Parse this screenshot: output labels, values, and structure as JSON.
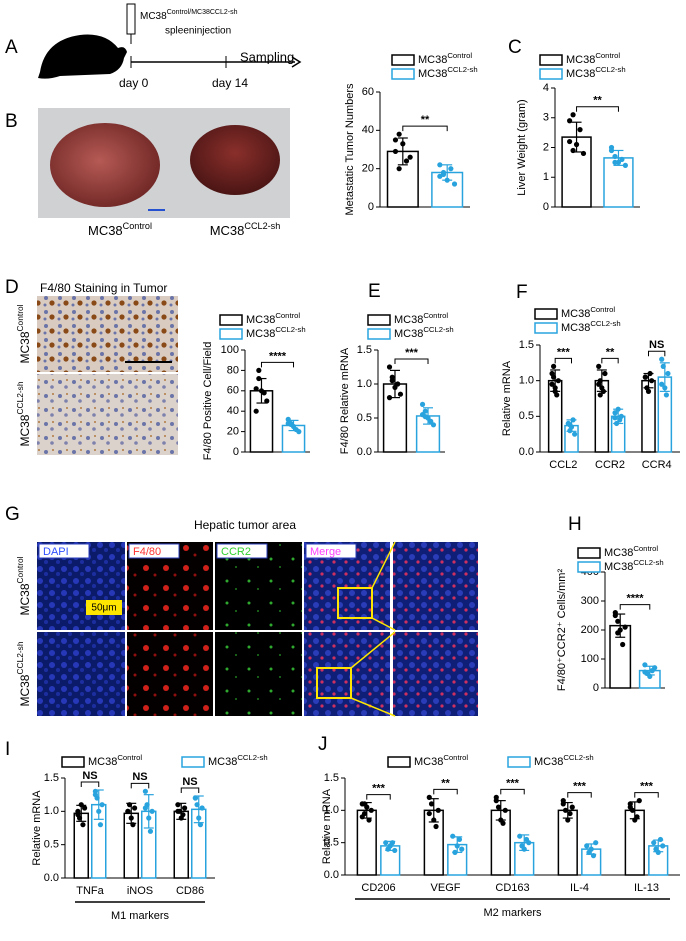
{
  "panels": [
    "A",
    "B",
    "C",
    "D",
    "E",
    "F",
    "G",
    "H",
    "I",
    "J"
  ],
  "schematic": {
    "treatment": "MC38Control/MC38CCL2-sh",
    "route": "spleeninjection",
    "endpoint": "Sampling",
    "start": "day 0",
    "end": "day 14"
  },
  "liver_photos": {
    "labels": [
      "MC38Control",
      "MC38CCL2-sh"
    ]
  },
  "ihc": {
    "title": "F4/80 Staining in Tumor",
    "rows": [
      "MC38Control",
      "MC38CCL2-sh"
    ]
  },
  "if_images": {
    "title": "Hepatic tumor area",
    "channels": [
      "DAPI",
      "F4/80",
      "CCR2",
      "Merge"
    ],
    "scale": "50μm",
    "rows": [
      "MC38Control",
      "MC38CCL2-sh"
    ]
  },
  "chart_data": [
    {
      "type": "bar",
      "ylabel": "Metastatic Tumor Numbers",
      "categories": [
        null
      ],
      "ylim": [
        0,
        60
      ],
      "yticks": [
        0,
        20,
        40,
        60
      ],
      "significance": [
        "**"
      ],
      "series": [
        {
          "name": "MC38Control",
          "color": "#000000",
          "values": [
            29
          ],
          "errors": [
            7
          ],
          "points": [
            [
              29,
              38,
              33,
              24,
              26,
              35,
              20
            ]
          ]
        },
        {
          "name": "MC38CCL2-sh",
          "color": "#29a3dd",
          "values": [
            18
          ],
          "errors": [
            4
          ],
          "points": [
            [
              22,
              18,
              14,
              20,
              12,
              16,
              17
            ]
          ]
        }
      ]
    },
    {
      "type": "bar",
      "ylabel": "Liver Weight (gram)",
      "categories": [
        null
      ],
      "ylim": [
        0,
        4
      ],
      "yticks": [
        0,
        1,
        2,
        3,
        4
      ],
      "significance": [
        "**"
      ],
      "series": [
        {
          "name": "MC38Control",
          "color": "#000000",
          "values": [
            2.35
          ],
          "errors": [
            0.5
          ],
          "points": [
            [
              2.9,
              3.1,
              2.1,
              2.6,
              1.8,
              2.2,
              1.9
            ]
          ]
        },
        {
          "name": "MC38CCL2-sh",
          "color": "#29a3dd",
          "values": [
            1.65
          ],
          "errors": [
            0.25
          ],
          "points": [
            [
              2.0,
              1.7,
              1.5,
              1.6,
              1.4,
              1.9,
              1.5
            ]
          ]
        }
      ]
    },
    {
      "type": "bar",
      "ylabel": "F4/80 Positive Cell/Field",
      "categories": [
        null
      ],
      "ylim": [
        0,
        100
      ],
      "yticks": [
        0,
        20,
        40,
        60,
        80,
        100
      ],
      "significance": [
        "****"
      ],
      "series": [
        {
          "name": "MC38Control",
          "color": "#000000",
          "values": [
            60
          ],
          "errors": [
            12
          ],
          "points": [
            [
              62,
              72,
              60,
              58,
              50,
              40,
              80
            ]
          ]
        },
        {
          "name": "MC38CCL2-sh",
          "color": "#29a3dd",
          "values": [
            26
          ],
          "errors": [
            5
          ],
          "points": [
            [
              32,
              28,
              25,
              22,
              20,
              28,
              27
            ]
          ]
        }
      ]
    },
    {
      "type": "bar",
      "ylabel": "F4/80 Relative mRNA",
      "categories": [
        null
      ],
      "ylim": [
        0,
        1.5
      ],
      "yticks": [
        {
          "value": 0,
          "label": "0.0"
        },
        0.5,
        {
          "value": 1,
          "label": "1.0"
        },
        1.5
      ],
      "significance": [
        "***"
      ],
      "series": [
        {
          "name": "MC38Control",
          "color": "#000000",
          "values": [
            1.0
          ],
          "errors": [
            0.2
          ],
          "points": [
            [
              1.25,
              1.05,
              0.95,
              1.0,
              0.85,
              0.8,
              1.1
            ]
          ]
        },
        {
          "name": "MC38CCL2-sh",
          "color": "#29a3dd",
          "values": [
            0.53
          ],
          "errors": [
            0.12
          ],
          "points": [
            [
              0.7,
              0.6,
              0.5,
              0.45,
              0.4,
              0.55,
              0.52
            ]
          ]
        }
      ]
    },
    {
      "type": "bar",
      "ylabel": "Relative mRNA",
      "categories": [
        "CCL2",
        "CCR2",
        "CCR4"
      ],
      "ylim": [
        0,
        1.5
      ],
      "yticks": [
        {
          "value": 0,
          "label": "0.0"
        },
        0.5,
        {
          "value": 1,
          "label": "1.0"
        },
        1.5
      ],
      "significance": [
        "***",
        "**",
        "NS"
      ],
      "series": [
        {
          "name": "MC38Control",
          "color": "#000000",
          "values": [
            1.0,
            1.0,
            1.0
          ],
          "errors": [
            0.15,
            0.15,
            0.1
          ],
          "points": [
            [
              1.1,
              1.2,
              0.9,
              0.8,
              1.0,
              0.95,
              1.05,
              0.85
            ],
            [
              1.2,
              1.0,
              0.9,
              0.85,
              1.1,
              0.95,
              0.8
            ],
            [
              1.05,
              0.9,
              0.85,
              1.1,
              1.0,
              1.05
            ]
          ]
        },
        {
          "name": "MC38CCL2-sh",
          "color": "#29a3dd",
          "values": [
            0.37,
            0.5,
            1.05
          ],
          "errors": [
            0.08,
            0.1,
            0.2
          ],
          "points": [
            [
              0.4,
              0.3,
              0.35,
              0.45,
              0.25,
              0.4,
              0.38
            ],
            [
              0.55,
              0.4,
              0.6,
              0.45,
              0.5,
              0.48
            ],
            [
              1.3,
              1.2,
              0.9,
              0.8,
              1.1,
              0.95
            ]
          ]
        }
      ]
    },
    {
      "type": "bar",
      "ylabel": "F4/80⁺CCR2⁺ Cells/mm²",
      "categories": [
        null
      ],
      "ylim": [
        0,
        400
      ],
      "yticks": [
        0,
        100,
        200,
        300,
        400
      ],
      "significance": [
        "****"
      ],
      "series": [
        {
          "name": "MC38Control",
          "color": "#000000",
          "values": [
            215
          ],
          "errors": [
            40
          ],
          "points": [
            [
              260,
              230,
              200,
              150,
              210,
              250,
              190
            ]
          ]
        },
        {
          "name": "MC38CCL2-sh",
          "color": "#29a3dd",
          "values": [
            60
          ],
          "errors": [
            15
          ],
          "points": [
            [
              80,
              50,
              40,
              60,
              70,
              55
            ]
          ]
        }
      ]
    },
    {
      "type": "bar",
      "ylabel": "Relative mRNA",
      "categories": [
        "TNFa",
        "iNOS",
        "CD86"
      ],
      "ylim": [
        0,
        1.5
      ],
      "yticks": [
        {
          "value": 0,
          "label": "0.0"
        },
        0.5,
        {
          "value": 1,
          "label": "1.0"
        },
        1.5
      ],
      "significance": [
        "NS",
        "NS",
        "NS"
      ],
      "group_label": "M1 markers",
      "series": [
        {
          "name": "MC38Control",
          "color": "#000000",
          "values": [
            0.97,
            0.97,
            1.0
          ],
          "errors": [
            0.12,
            0.15,
            0.12
          ],
          "points": [
            [
              1.0,
              0.9,
              1.1,
              0.8,
              1.05,
              0.95
            ],
            [
              1.0,
              1.1,
              0.9,
              0.8,
              1.05,
              1.0
            ],
            [
              1.1,
              1.0,
              0.9,
              0.95,
              1.05,
              1.0
            ]
          ]
        },
        {
          "name": "MC38CCL2-sh",
          "color": "#29a3dd",
          "values": [
            1.1,
            1.0,
            1.03
          ],
          "errors": [
            0.22,
            0.25,
            0.2
          ],
          "points": [
            [
              1.3,
              1.2,
              1.0,
              0.8,
              1.1,
              1.25
            ],
            [
              1.3,
              1.1,
              0.9,
              0.7,
              1.0,
              1.05
            ],
            [
              1.2,
              1.1,
              0.9,
              0.8,
              1.05,
              1.2
            ]
          ]
        }
      ]
    },
    {
      "type": "bar",
      "ylabel": "Relative mRNA",
      "categories": [
        "CD206",
        "VEGF",
        "CD163",
        "IL-4",
        "IL-13"
      ],
      "ylim": [
        0,
        1.5
      ],
      "yticks": [
        {
          "value": 0,
          "label": "0.0"
        },
        0.5,
        {
          "value": 1,
          "label": "1.0"
        },
        1.5
      ],
      "significance": [
        "***",
        "**",
        "***",
        "***",
        "***"
      ],
      "group_label": "M2 markers",
      "series": [
        {
          "name": "MC38Control",
          "color": "#000000",
          "values": [
            1.0,
            1.0,
            1.0,
            1.0,
            1.0
          ],
          "errors": [
            0.12,
            0.18,
            0.15,
            0.12,
            0.13
          ],
          "points": [
            [
              1.1,
              0.95,
              1.05,
              0.85,
              1.0,
              0.9,
              1.1
            ],
            [
              1.2,
              1.1,
              0.85,
              0.75,
              1.0,
              0.95
            ],
            [
              1.15,
              1.05,
              0.85,
              0.8,
              1.0,
              1.2
            ],
            [
              1.1,
              1.0,
              0.85,
              0.95,
              1.05,
              1.15
            ],
            [
              1.1,
              1.0,
              0.85,
              0.9,
              1.15,
              1.05
            ]
          ]
        },
        {
          "name": "MC38CCL2-sh",
          "color": "#29a3dd",
          "values": [
            0.45,
            0.47,
            0.5,
            0.4,
            0.45
          ],
          "errors": [
            0.07,
            0.12,
            0.12,
            0.08,
            0.09
          ],
          "points": [
            [
              0.5,
              0.4,
              0.45,
              0.5,
              0.38
            ],
            [
              0.6,
              0.35,
              0.45,
              0.55,
              0.4
            ],
            [
              0.6,
              0.45,
              0.4,
              0.55,
              0.5
            ],
            [
              0.45,
              0.35,
              0.4,
              0.3,
              0.5
            ],
            [
              0.5,
              0.4,
              0.35,
              0.55,
              0.45
            ]
          ]
        }
      ]
    }
  ]
}
